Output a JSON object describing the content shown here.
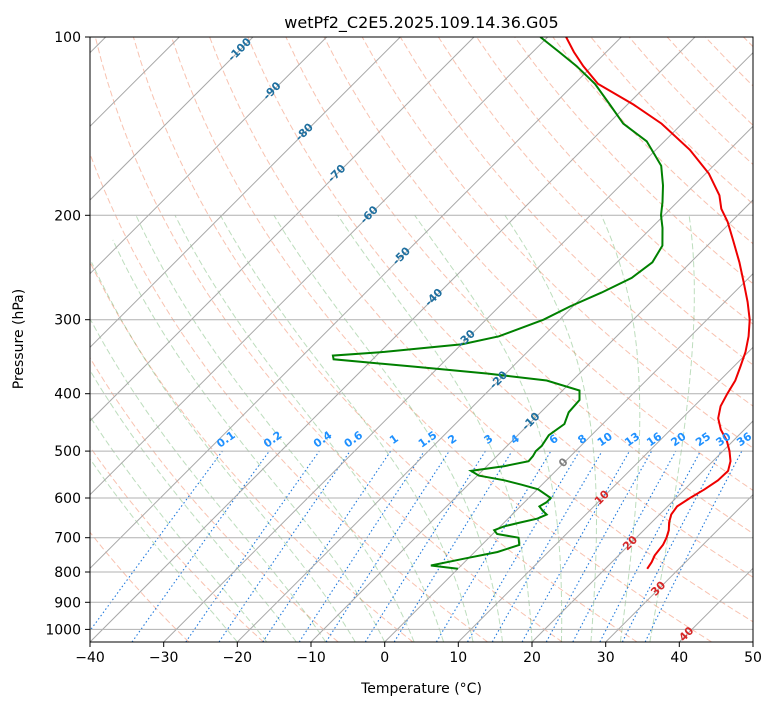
{
  "chart_data": {
    "type": "line",
    "subtype": "skew-t log-p diagram",
    "title": "wetPf2_C2E5.2025.109.14.36.G05",
    "xlabel": "Temperature (°C)",
    "ylabel": "Pressure (hPa)",
    "xlim": [
      -40,
      50
    ],
    "ylim": [
      1050,
      100
    ],
    "y_scale": "log",
    "grid": true,
    "x_ticks": [
      -40,
      -30,
      -20,
      -10,
      0,
      10,
      20,
      30,
      40,
      50
    ],
    "x_tick_labels": [
      "−40",
      "−30",
      "−20",
      "−10",
      "0",
      "10",
      "20",
      "30",
      "40",
      "50"
    ],
    "y_ticks": [
      100,
      200,
      300,
      400,
      500,
      600,
      700,
      800,
      900,
      1000
    ],
    "y_tick_labels": [
      "100",
      "200",
      "300",
      "400",
      "500",
      "600",
      "700",
      "800",
      "900",
      "1000"
    ],
    "isotherm_labels": [
      "-100",
      "-90",
      "-80",
      "-70",
      "-60",
      "-50",
      "-40",
      "-30",
      "-20",
      "-10",
      "0",
      "10",
      "20",
      "30",
      "40"
    ],
    "mixing_ratio_labels": [
      "0.1",
      "0.2",
      "0.4",
      "0.6",
      "1",
      "1.5",
      "2",
      "3",
      "4",
      "6",
      "8",
      "10",
      "13",
      "16",
      "20",
      "25",
      "30",
      "36"
    ],
    "series": [
      {
        "name": "temperature",
        "color": "#ee0000",
        "points": [
          [
            790,
            25.7
          ],
          [
            770,
            25.4
          ],
          [
            750,
            24.9
          ],
          [
            720,
            24.6
          ],
          [
            700,
            24.1
          ],
          [
            680,
            23.4
          ],
          [
            660,
            22.4
          ],
          [
            640,
            21.6
          ],
          [
            620,
            21.3
          ],
          [
            600,
            21.9
          ],
          [
            580,
            22.7
          ],
          [
            560,
            23.3
          ],
          [
            540,
            23.4
          ],
          [
            520,
            22.4
          ],
          [
            500,
            20.9
          ],
          [
            480,
            19.1
          ],
          [
            460,
            16.8
          ],
          [
            440,
            14.9
          ],
          [
            420,
            13.6
          ],
          [
            400,
            12.8
          ],
          [
            380,
            12.1
          ],
          [
            360,
            10.9
          ],
          [
            340,
            9.6
          ],
          [
            320,
            7.9
          ],
          [
            300,
            5.8
          ],
          [
            280,
            3.1
          ],
          [
            260,
            0.0
          ],
          [
            240,
            -3.4
          ],
          [
            220,
            -7.3
          ],
          [
            205,
            -10.5
          ],
          [
            195,
            -13.1
          ],
          [
            185,
            -15.2
          ],
          [
            170,
            -19.6
          ],
          [
            155,
            -25.4
          ],
          [
            140,
            -32.8
          ],
          [
            130,
            -39.2
          ],
          [
            120,
            -46.8
          ],
          [
            112,
            -51.2
          ],
          [
            106,
            -54.4
          ],
          [
            100,
            -57.5
          ]
        ]
      },
      {
        "name": "dewpoint",
        "color": "#008000",
        "points": [
          [
            790,
            0.0
          ],
          [
            780,
            -4.1
          ],
          [
            760,
            -0.6
          ],
          [
            740,
            3.1
          ],
          [
            720,
            5.1
          ],
          [
            700,
            4.0
          ],
          [
            690,
            0.6
          ],
          [
            680,
            -0.3
          ],
          [
            670,
            0.5
          ],
          [
            660,
            2.2
          ],
          [
            650,
            4.0
          ],
          [
            640,
            4.7
          ],
          [
            630,
            3.6
          ],
          [
            620,
            2.6
          ],
          [
            610,
            3.0
          ],
          [
            600,
            3.0
          ],
          [
            580,
            0.1
          ],
          [
            570,
            -2.7
          ],
          [
            560,
            -5.7
          ],
          [
            550,
            -9.8
          ],
          [
            540,
            -11.5
          ],
          [
            530,
            -7.6
          ],
          [
            520,
            -5.0
          ],
          [
            510,
            -5.1
          ],
          [
            500,
            -5.4
          ],
          [
            490,
            -5.3
          ],
          [
            470,
            -5.8
          ],
          [
            450,
            -5.2
          ],
          [
            430,
            -6.2
          ],
          [
            410,
            -6.4
          ],
          [
            395,
            -7.7
          ],
          [
            380,
            -13.5
          ],
          [
            370,
            -22.4
          ],
          [
            360,
            -33.4
          ],
          [
            350,
            -45.3
          ],
          [
            345,
            -45.9
          ],
          [
            340,
            -39.4
          ],
          [
            330,
            -29.9
          ],
          [
            320,
            -26.0
          ],
          [
            300,
            -22.2
          ],
          [
            285,
            -20.4
          ],
          [
            270,
            -18.0
          ],
          [
            255,
            -15.9
          ],
          [
            240,
            -15.2
          ],
          [
            225,
            -16.1
          ],
          [
            210,
            -18.5
          ],
          [
            200,
            -20.4
          ],
          [
            190,
            -22.0
          ],
          [
            178,
            -24.2
          ],
          [
            165,
            -27.1
          ],
          [
            150,
            -32.4
          ],
          [
            140,
            -38.0
          ],
          [
            130,
            -42.4
          ],
          [
            120,
            -47.2
          ],
          [
            112,
            -52.1
          ],
          [
            106,
            -56.4
          ],
          [
            100,
            -61.0
          ]
        ]
      }
    ]
  }
}
